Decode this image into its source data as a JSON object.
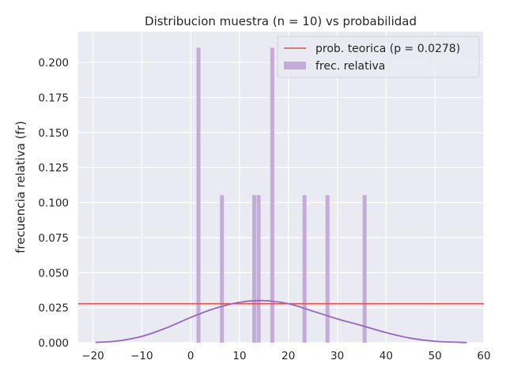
{
  "chart_data": {
    "type": "bar",
    "title": "Distribucion muestra (n = 10) vs probabilidad",
    "xlabel": "",
    "ylabel": "frecuencia relativa (fr)",
    "xlim": [
      -23,
      60
    ],
    "ylim": [
      0,
      0.222
    ],
    "grid": true,
    "legend_position": "top-right",
    "x_ticks": [
      {
        "value": -20,
        "label": "−20"
      },
      {
        "value": -10,
        "label": "−10"
      },
      {
        "value": 0,
        "label": "0"
      },
      {
        "value": 10,
        "label": "10"
      },
      {
        "value": 20,
        "label": "20"
      },
      {
        "value": 30,
        "label": "30"
      },
      {
        "value": 40,
        "label": "40"
      },
      {
        "value": 50,
        "label": "50"
      },
      {
        "value": 60,
        "label": "60"
      }
    ],
    "y_ticks": [
      {
        "value": 0.0,
        "label": "0.000"
      },
      {
        "value": 0.025,
        "label": "0.025"
      },
      {
        "value": 0.05,
        "label": "0.050"
      },
      {
        "value": 0.075,
        "label": "0.075"
      },
      {
        "value": 0.1,
        "label": "0.100"
      },
      {
        "value": 0.125,
        "label": "0.125"
      },
      {
        "value": 0.15,
        "label": "0.150"
      },
      {
        "value": 0.175,
        "label": "0.175"
      },
      {
        "value": 0.2,
        "label": "0.200"
      }
    ],
    "series": [
      {
        "name": "prob. teorica (p = 0.0278)",
        "kind": "hline",
        "y": 0.0278,
        "color": "#d9534f"
      },
      {
        "name": "frec. relativa",
        "kind": "bar",
        "color": "#c3acd8",
        "bars": [
          {
            "x": 1.6,
            "value": 0.2105
          },
          {
            "x": 6.4,
            "value": 0.1053
          },
          {
            "x": 13.0,
            "value": 0.1053
          },
          {
            "x": 13.9,
            "value": 0.1053
          },
          {
            "x": 16.7,
            "value": 0.2105
          },
          {
            "x": 23.3,
            "value": 0.1053
          },
          {
            "x": 28.0,
            "value": 0.1053
          },
          {
            "x": 35.6,
            "value": 0.1053
          }
        ]
      },
      {
        "kind": "line",
        "color": "#9467bd",
        "x": [
          -19.5,
          -15,
          -10,
          -5,
          0,
          5,
          10,
          15,
          20,
          25,
          30,
          35,
          40,
          45,
          50,
          56.5
        ],
        "y": [
          0.0002,
          0.0012,
          0.0045,
          0.0105,
          0.018,
          0.0245,
          0.0288,
          0.03,
          0.0278,
          0.0225,
          0.017,
          0.0122,
          0.0072,
          0.0032,
          0.001,
          0.0001
        ]
      }
    ]
  }
}
